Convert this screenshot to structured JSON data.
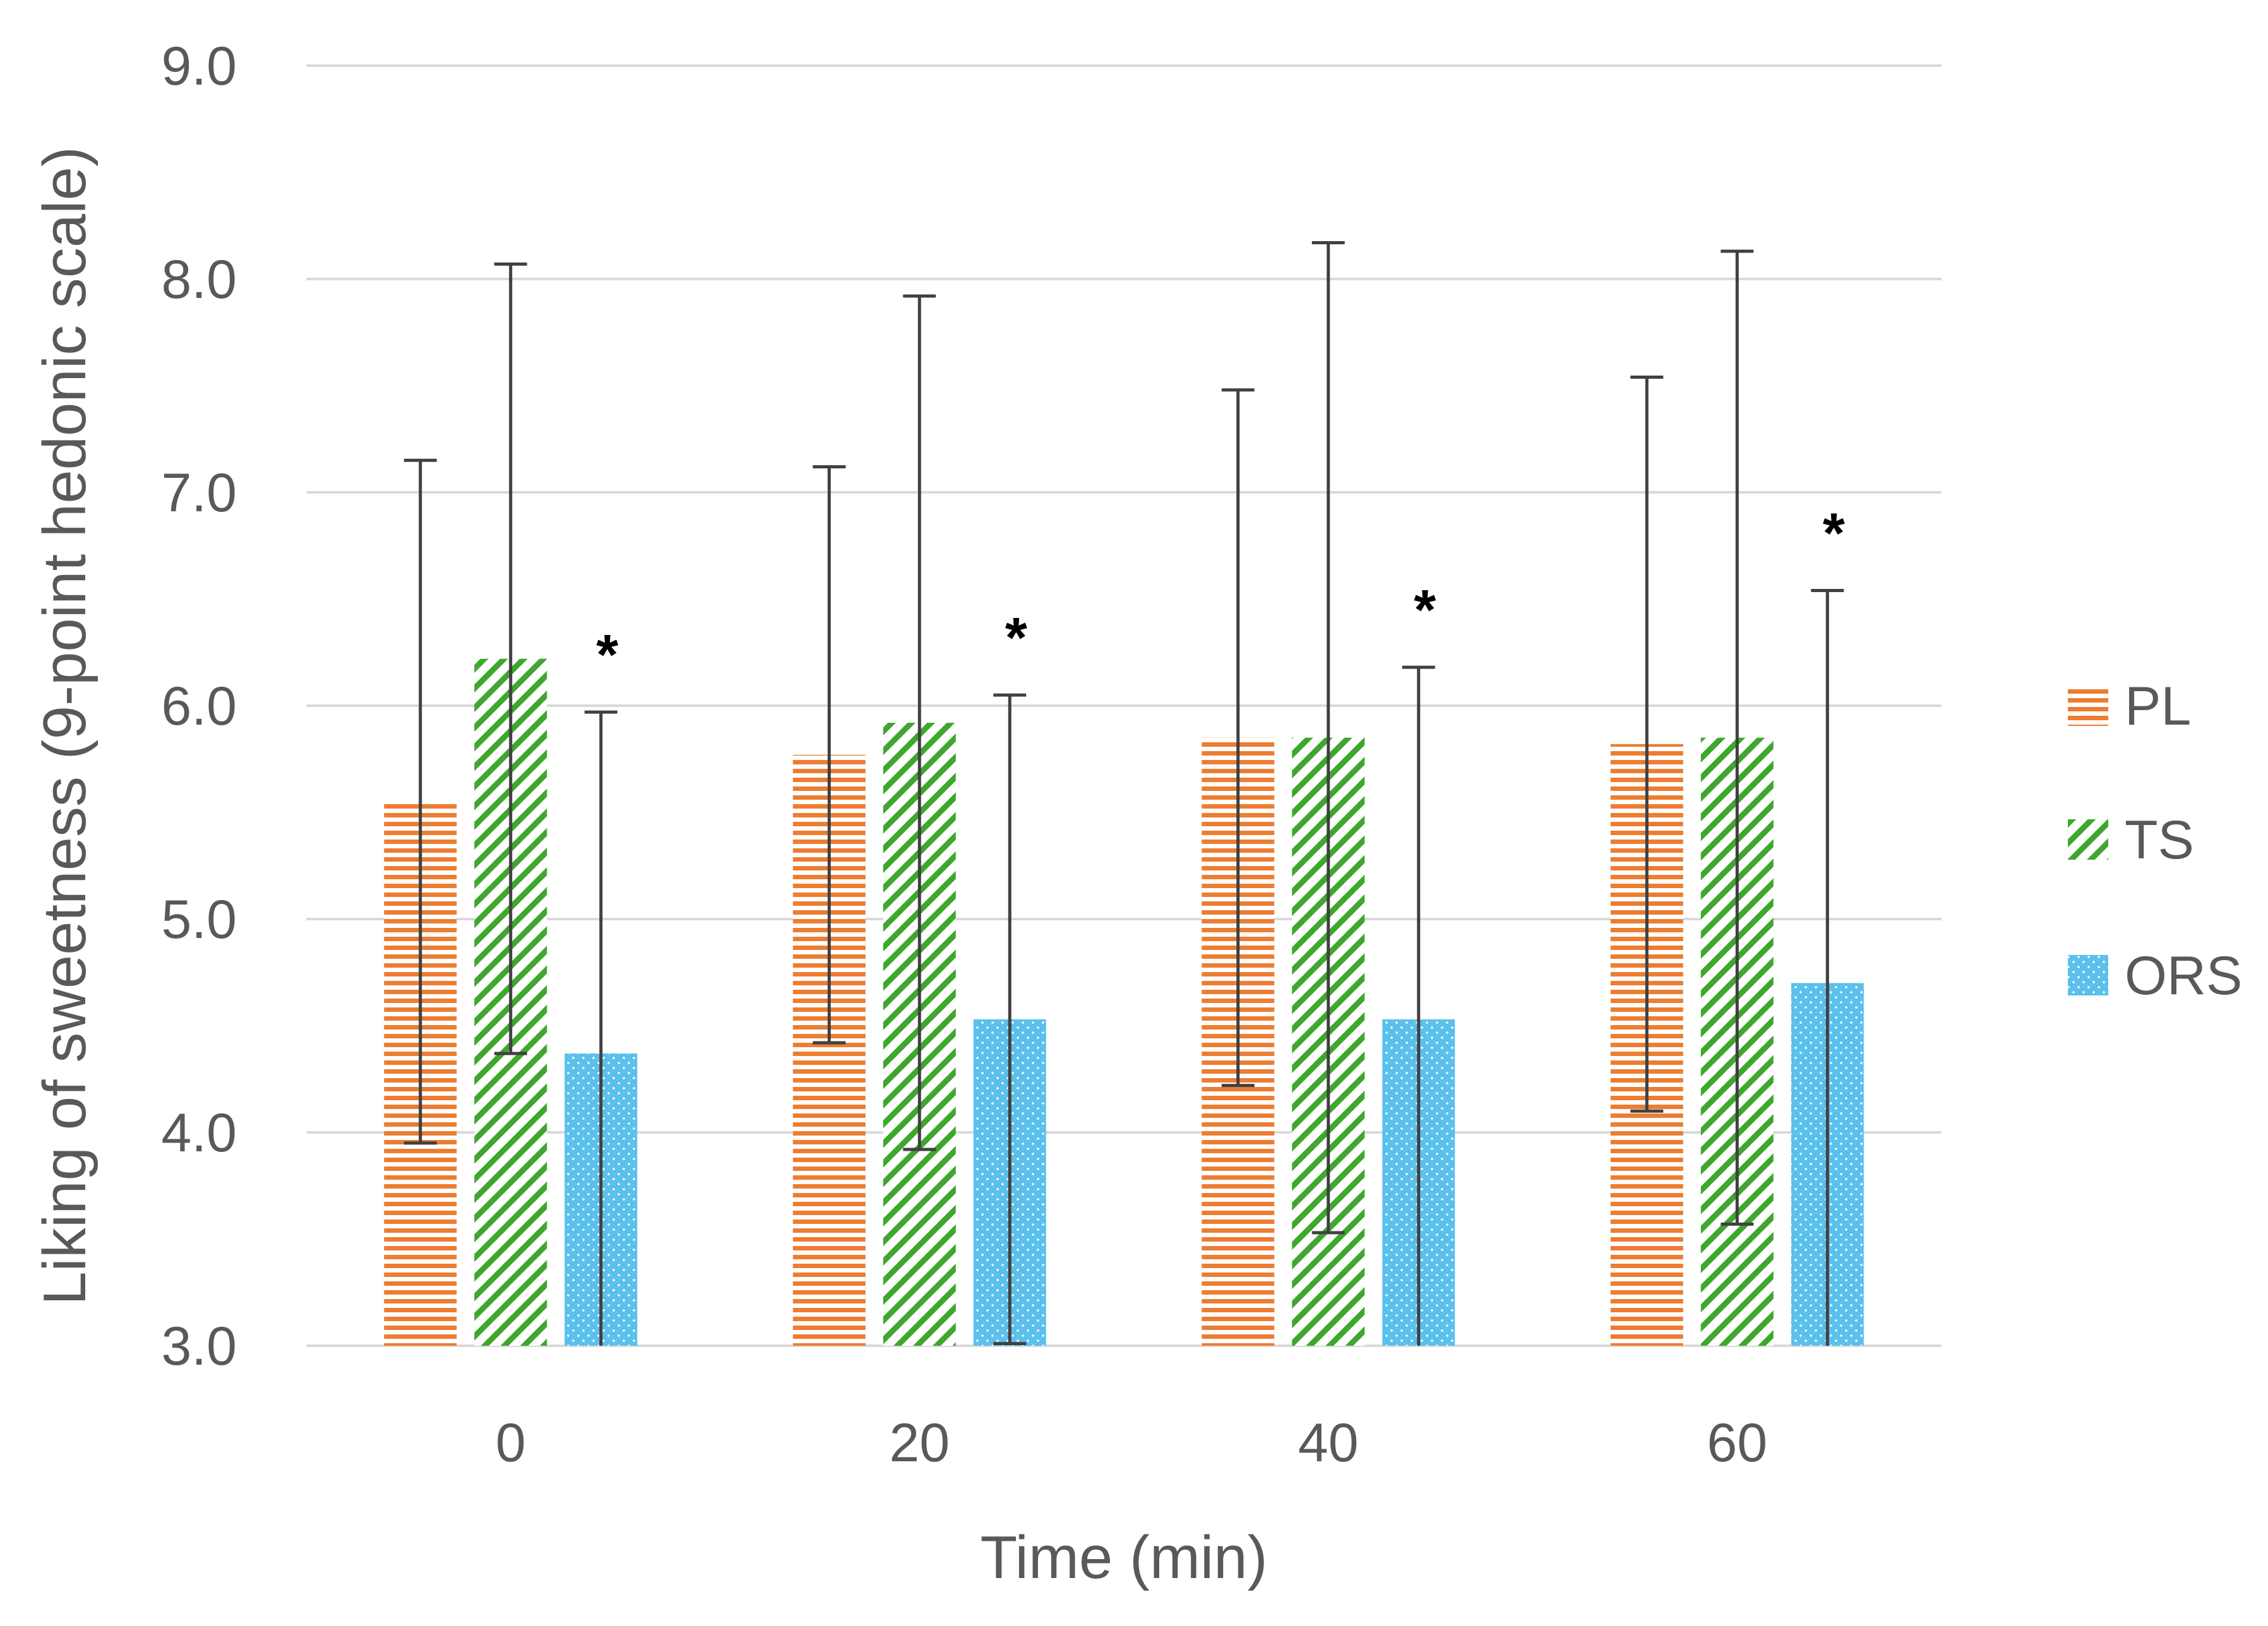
{
  "chart_data": {
    "type": "bar",
    "title": "",
    "xlabel": "Time (min)",
    "ylabel": "Liking of sweetness (9-point hedonic scale)",
    "ylim": [
      3.0,
      9.0
    ],
    "yticks": [
      "3.0",
      "4.0",
      "5.0",
      "6.0",
      "7.0",
      "8.0",
      "9.0"
    ],
    "ytick_values": [
      3,
      4,
      5,
      6,
      7,
      8,
      9
    ],
    "grid": true,
    "legend_position": "right",
    "categories": [
      "0",
      "20",
      "40",
      "60"
    ],
    "series": [
      {
        "name": "PL",
        "pattern": "horizontal-lines",
        "color": "#ED7D31",
        "values": [
          5.55,
          5.77,
          5.85,
          5.82
        ],
        "errors": [
          1.6,
          1.35,
          1.63,
          1.72
        ]
      },
      {
        "name": "TS",
        "pattern": "diagonal-lines",
        "color": "#3EA72D",
        "values": [
          6.22,
          5.92,
          5.85,
          5.85
        ],
        "errors": [
          1.85,
          2.0,
          2.32,
          2.28
        ]
      },
      {
        "name": "ORS",
        "pattern": "dots",
        "color": "#5BC0EB",
        "values": [
          4.37,
          4.53,
          4.53,
          4.7
        ],
        "errors": [
          1.6,
          1.52,
          1.65,
          1.84
        ]
      }
    ],
    "annotations": [
      {
        "category": "0",
        "series": "ORS",
        "text": "*"
      },
      {
        "category": "20",
        "series": "ORS",
        "text": "*"
      },
      {
        "category": "40",
        "series": "ORS",
        "text": "*"
      },
      {
        "category": "60",
        "series": "ORS",
        "text": "*"
      }
    ],
    "error_bar_color": "#404040",
    "grid_color": "#D9D9D9"
  }
}
